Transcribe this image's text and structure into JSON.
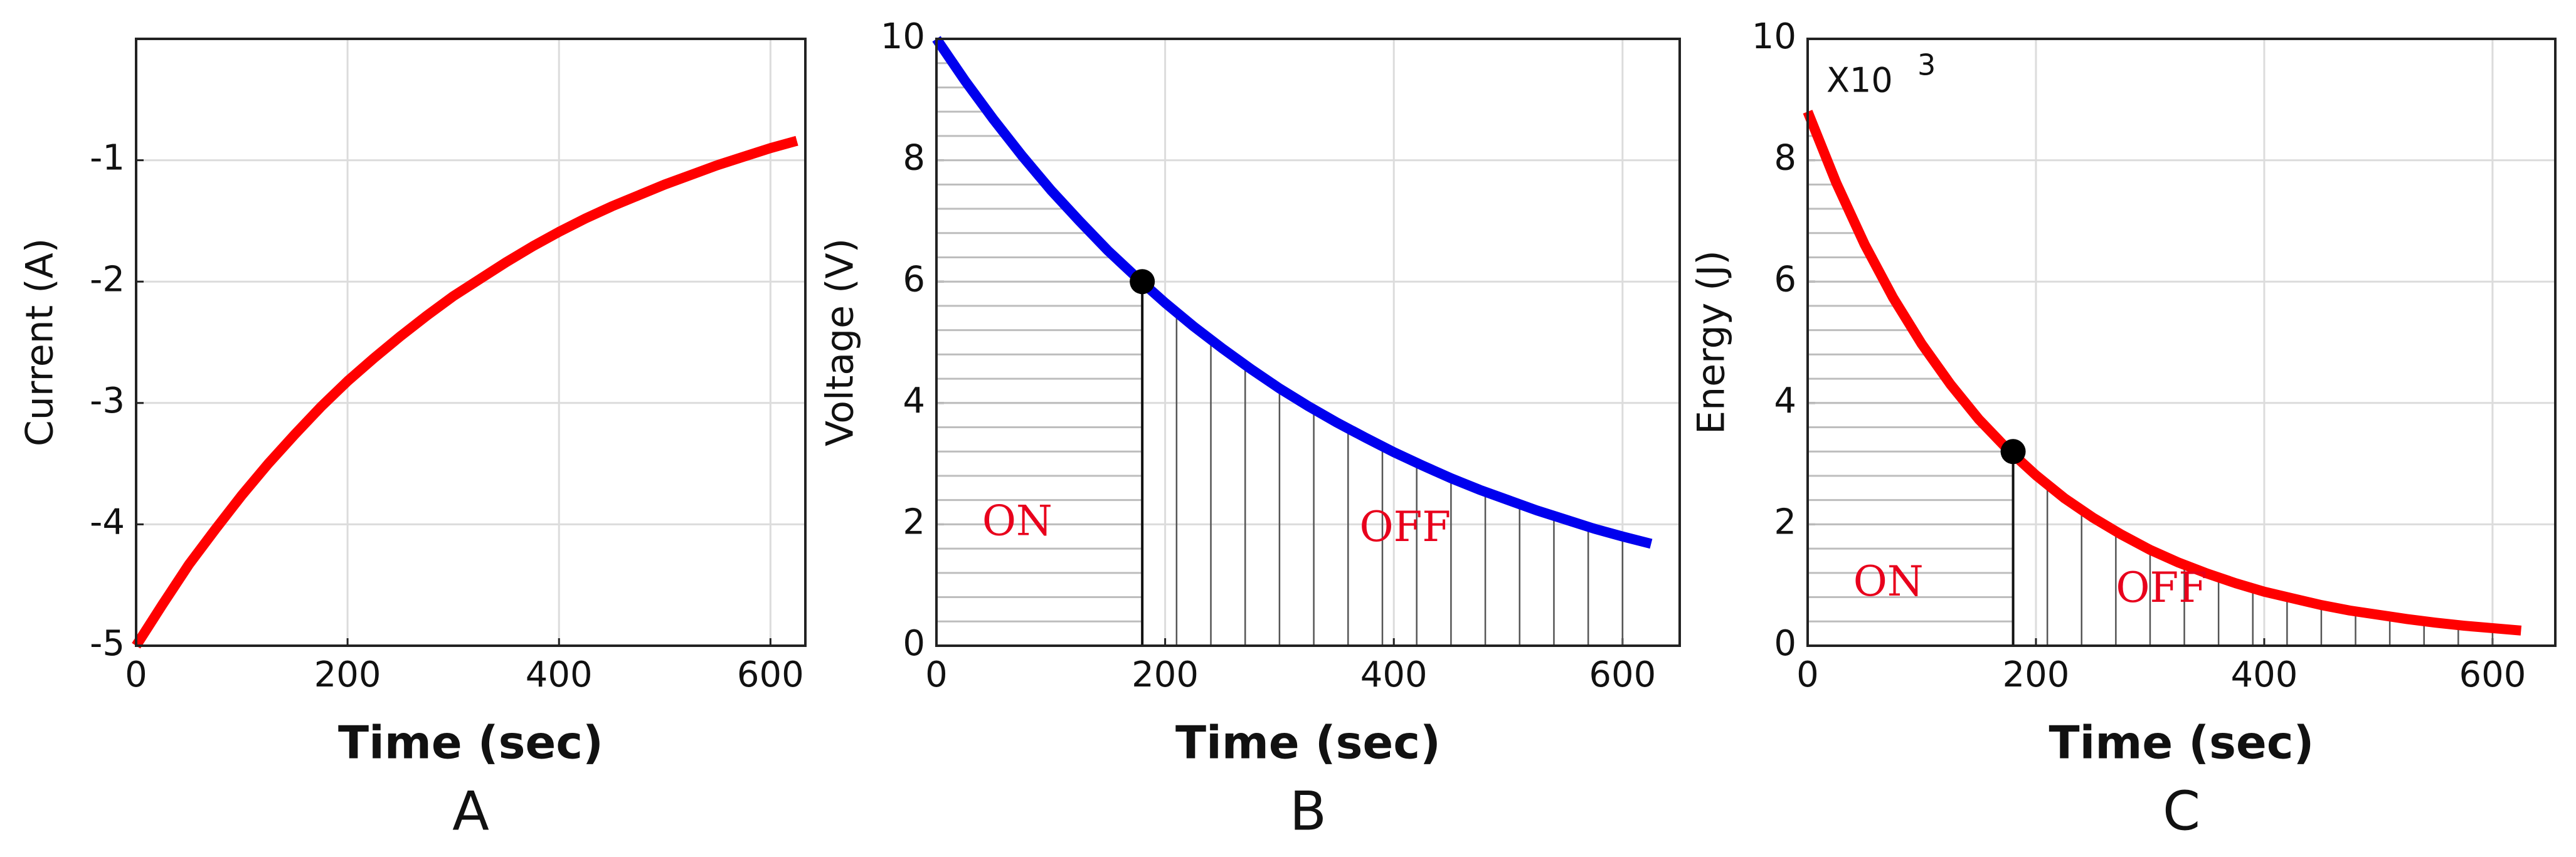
{
  "chart_data": [
    {
      "type": "line",
      "xlabel": "Time (sec)",
      "ylabel": "Current (A)",
      "panel_label": "A",
      "x": [
        0,
        25,
        50,
        75,
        100,
        125,
        150,
        175,
        200,
        225,
        250,
        275,
        300,
        325,
        350,
        375,
        400,
        425,
        450,
        475,
        500,
        525,
        550,
        575,
        600,
        625
      ],
      "series": [
        {
          "color": "#ff0000",
          "values": [
            -5,
            -4.66,
            -4.33,
            -4.04,
            -3.76,
            -3.5,
            -3.26,
            -3.03,
            -2.82,
            -2.63,
            -2.45,
            -2.28,
            -2.12,
            -1.98,
            -1.84,
            -1.71,
            -1.59,
            -1.48,
            -1.38,
            -1.29,
            -1.2,
            -1.12,
            -1.04,
            -0.97,
            -0.9,
            -0.84
          ]
        }
      ],
      "xlim": [
        0,
        633
      ],
      "xticks": [
        0,
        200,
        400,
        600
      ],
      "ylim": [
        -5,
        0
      ],
      "yticks": [
        -5,
        -4,
        -3,
        -2,
        -1
      ],
      "grid": true
    },
    {
      "type": "line",
      "xlabel": "Time (sec)",
      "ylabel": "Voltage (V)",
      "panel_label": "B",
      "x": [
        0,
        25,
        50,
        75,
        100,
        125,
        150,
        175,
        200,
        225,
        250,
        275,
        300,
        325,
        350,
        375,
        400,
        425,
        450,
        475,
        500,
        525,
        550,
        575,
        600,
        625
      ],
      "series": [
        {
          "color": "#0000ee",
          "values": [
            10,
            9.31,
            8.67,
            8.07,
            7.51,
            7,
            6.51,
            6.07,
            5.65,
            5.26,
            4.9,
            4.56,
            4.24,
            3.95,
            3.68,
            3.43,
            3.19,
            2.97,
            2.76,
            2.57,
            2.4,
            2.23,
            2.08,
            1.93,
            1.8,
            1.68
          ]
        }
      ],
      "point": {
        "x": 180,
        "y": 6
      },
      "annotations": [
        "ON",
        "OFF"
      ],
      "xlim": [
        0,
        650
      ],
      "xticks": [
        0,
        200,
        400,
        600
      ],
      "ylim": [
        0,
        10
      ],
      "yticks": [
        0,
        2,
        4,
        6,
        8,
        10
      ],
      "grid": true
    },
    {
      "type": "line",
      "xlabel": "Time (sec)",
      "ylabel": "Energy (J)",
      "panel_label": "C",
      "multiplier": {
        "base": "X10",
        "exponent": "3"
      },
      "x": [
        0,
        25,
        50,
        75,
        100,
        125,
        150,
        175,
        200,
        225,
        250,
        275,
        300,
        325,
        350,
        375,
        400,
        425,
        450,
        475,
        500,
        525,
        550,
        575,
        600,
        625
      ],
      "series": [
        {
          "color": "#ff0000",
          "values": [
            8.8,
            7.63,
            6.61,
            5.73,
            4.97,
            4.31,
            3.73,
            3.24,
            2.81,
            2.43,
            2.11,
            1.83,
            1.58,
            1.37,
            1.19,
            1.03,
            0.89,
            0.78,
            0.67,
            0.58,
            0.51,
            0.44,
            0.38,
            0.33,
            0.29,
            0.25
          ]
        }
      ],
      "point": {
        "x": 180,
        "y": 3.2
      },
      "annotations": [
        "ON",
        "OFF"
      ],
      "xlim": [
        0,
        655
      ],
      "xticks": [
        0,
        200,
        400,
        600
      ],
      "ylim": [
        0,
        10
      ],
      "yticks": [
        0,
        2,
        4,
        6,
        8,
        10
      ],
      "grid": true
    }
  ]
}
